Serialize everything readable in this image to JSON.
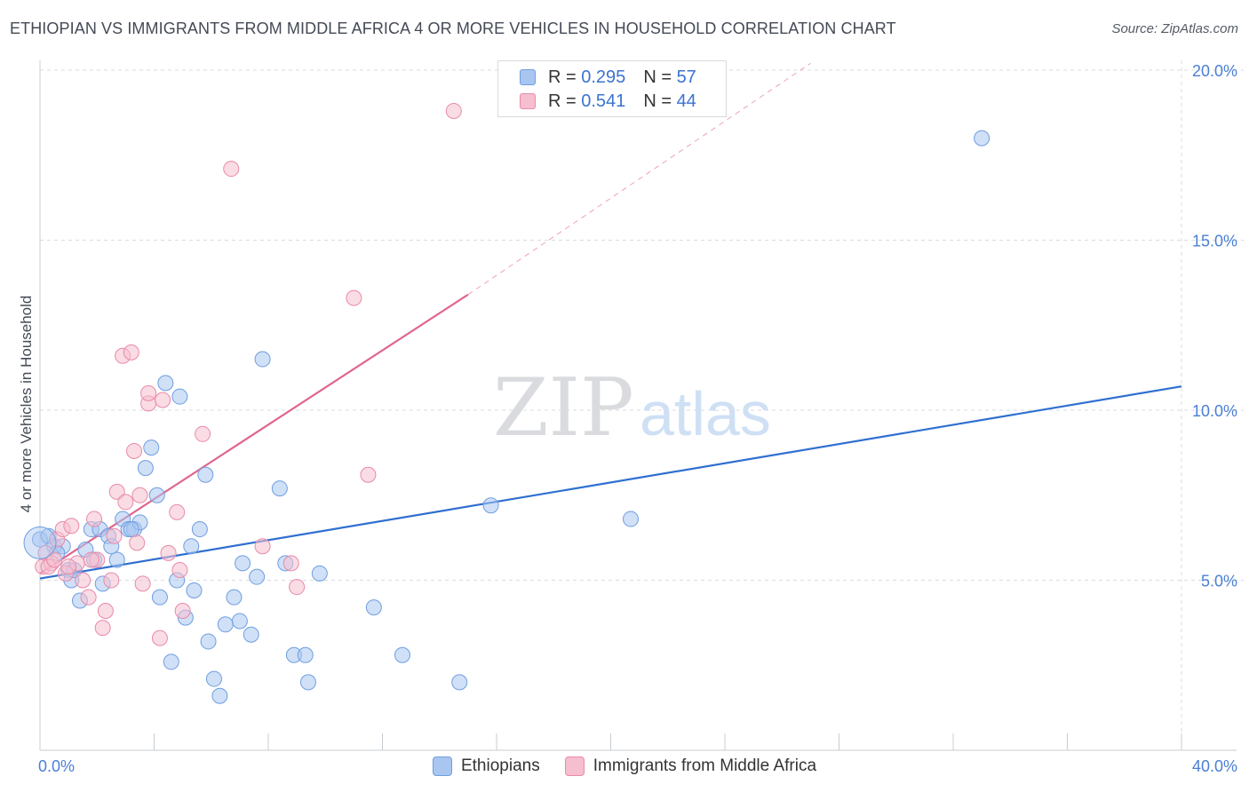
{
  "title": "ETHIOPIAN VS IMMIGRANTS FROM MIDDLE AFRICA 4 OR MORE VEHICLES IN HOUSEHOLD CORRELATION CHART",
  "source": "Source: ZipAtlas.com",
  "watermark": {
    "zip": "ZIP",
    "atlas": "atlas"
  },
  "colors": {
    "blue_fill": "#a9c6f0",
    "blue_stroke": "#6f9ee0",
    "blue_line": "#2f6fd0",
    "pink_fill": "#f6bfd0",
    "pink_stroke": "#e98aa8",
    "pink_line": "#e0668e",
    "tick_text": "#4a7fd4",
    "grid": "#d8dbe0"
  },
  "legend": [
    {
      "r_label": "R =",
      "r_value": "0.295",
      "n_label": "N =",
      "n_value": "57"
    },
    {
      "r_label": "R =",
      "r_value": "0.541",
      "n_label": "N =",
      "n_value": "44"
    }
  ],
  "chart_data": {
    "type": "scatter",
    "title": "ETHIOPIAN VS IMMIGRANTS FROM MIDDLE AFRICA 4 OR MORE VEHICLES IN HOUSEHOLD CORRELATION CHART",
    "xlabel": "",
    "ylabel": "4 or more Vehicles in Household",
    "xlim": [
      0,
      40
    ],
    "ylim": [
      0,
      20.5
    ],
    "x_tick_labels": [
      "0.0%",
      "40.0%"
    ],
    "x_tick_values": [
      0,
      40
    ],
    "x_minor_ticks": [
      4,
      8,
      12,
      16,
      20,
      24,
      28,
      32,
      36
    ],
    "y_tick_labels": [
      "5.0%",
      "10.0%",
      "15.0%",
      "20.0%"
    ],
    "y_tick_values": [
      5,
      10,
      15,
      20
    ],
    "grid": true,
    "legend_position": "bottom",
    "series": [
      {
        "name": "Ethiopians",
        "color": "blue",
        "points": [
          [
            0.0,
            6.2
          ],
          [
            0.3,
            6.3
          ],
          [
            0.5,
            6.0
          ],
          [
            0.8,
            6.0
          ],
          [
            1.0,
            5.3
          ],
          [
            1.1,
            5.0
          ],
          [
            1.4,
            4.4
          ],
          [
            1.6,
            5.9
          ],
          [
            1.8,
            6.5
          ],
          [
            1.9,
            5.6
          ],
          [
            2.1,
            6.5
          ],
          [
            2.2,
            4.9
          ],
          [
            2.4,
            6.3
          ],
          [
            2.5,
            6.0
          ],
          [
            2.7,
            5.6
          ],
          [
            2.9,
            6.8
          ],
          [
            3.1,
            6.5
          ],
          [
            3.3,
            6.5
          ],
          [
            3.5,
            6.7
          ],
          [
            3.7,
            8.3
          ],
          [
            3.9,
            8.9
          ],
          [
            4.1,
            7.5
          ],
          [
            4.2,
            4.5
          ],
          [
            4.4,
            10.8
          ],
          [
            4.6,
            2.6
          ],
          [
            4.8,
            5.0
          ],
          [
            4.9,
            10.4
          ],
          [
            5.1,
            3.9
          ],
          [
            5.3,
            6.0
          ],
          [
            5.4,
            4.7
          ],
          [
            5.6,
            6.5
          ],
          [
            5.8,
            8.1
          ],
          [
            5.9,
            3.2
          ],
          [
            6.1,
            2.1
          ],
          [
            6.3,
            1.6
          ],
          [
            6.5,
            3.7
          ],
          [
            6.8,
            4.5
          ],
          [
            7.0,
            3.8
          ],
          [
            7.1,
            5.5
          ],
          [
            7.4,
            3.4
          ],
          [
            7.6,
            5.1
          ],
          [
            7.8,
            11.5
          ],
          [
            8.4,
            7.7
          ],
          [
            8.6,
            5.5
          ],
          [
            8.9,
            2.8
          ],
          [
            9.3,
            2.8
          ],
          [
            9.4,
            2.0
          ],
          [
            9.8,
            5.2
          ],
          [
            11.7,
            4.2
          ],
          [
            12.7,
            2.8
          ],
          [
            14.7,
            2.0
          ],
          [
            15.8,
            7.2
          ],
          [
            20.7,
            6.8
          ],
          [
            33.0,
            18.0
          ],
          [
            1.2,
            5.3
          ],
          [
            3.2,
            6.5
          ],
          [
            0.6,
            5.8
          ]
        ]
      },
      {
        "name": "Immigrants from Middle Africa",
        "color": "pink",
        "points": [
          [
            0.1,
            5.4
          ],
          [
            0.2,
            5.8
          ],
          [
            0.4,
            5.5
          ],
          [
            0.6,
            6.2
          ],
          [
            0.8,
            6.5
          ],
          [
            0.9,
            5.2
          ],
          [
            1.1,
            6.6
          ],
          [
            1.3,
            5.5
          ],
          [
            1.5,
            5.0
          ],
          [
            1.7,
            4.5
          ],
          [
            1.9,
            6.8
          ],
          [
            2.0,
            5.6
          ],
          [
            2.2,
            3.6
          ],
          [
            2.3,
            4.1
          ],
          [
            2.5,
            5.0
          ],
          [
            2.6,
            6.3
          ],
          [
            2.7,
            7.6
          ],
          [
            2.9,
            11.6
          ],
          [
            3.0,
            7.3
          ],
          [
            3.2,
            11.7
          ],
          [
            3.3,
            8.8
          ],
          [
            3.4,
            6.1
          ],
          [
            3.5,
            7.5
          ],
          [
            3.6,
            4.9
          ],
          [
            3.8,
            10.2
          ],
          [
            3.8,
            10.5
          ],
          [
            4.2,
            3.3
          ],
          [
            4.3,
            10.3
          ],
          [
            4.5,
            5.8
          ],
          [
            4.8,
            7.0
          ],
          [
            4.9,
            5.3
          ],
          [
            5.0,
            4.1
          ],
          [
            5.7,
            9.3
          ],
          [
            6.7,
            17.1
          ],
          [
            7.8,
            6.0
          ],
          [
            8.8,
            5.5
          ],
          [
            9.0,
            4.8
          ],
          [
            11.0,
            13.3
          ],
          [
            11.5,
            8.1
          ],
          [
            14.5,
            18.8
          ],
          [
            0.3,
            5.4
          ],
          [
            1.0,
            5.4
          ],
          [
            1.8,
            5.6
          ],
          [
            0.5,
            5.6
          ]
        ]
      }
    ],
    "trendlines": [
      {
        "series": "Ethiopians",
        "x": [
          0,
          40
        ],
        "y": [
          5.05,
          10.7
        ],
        "style": "solid"
      },
      {
        "series": "Immigrants from Middle Africa",
        "x": [
          0,
          15.0
        ],
        "y": [
          5.2,
          13.4
        ],
        "style": "solid"
      },
      {
        "series": "Immigrants from Middle Africa",
        "x": [
          15.0,
          27.0
        ],
        "y": [
          13.4,
          20.2
        ],
        "style": "dashed"
      }
    ]
  }
}
